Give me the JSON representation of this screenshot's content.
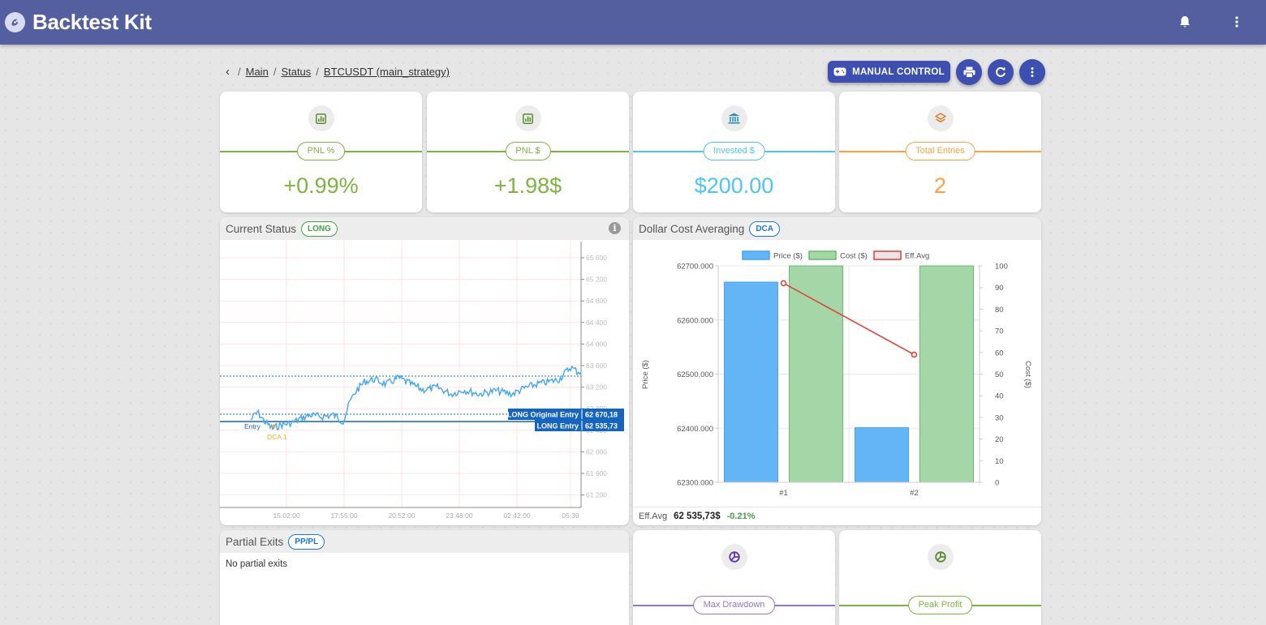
{
  "app": {
    "title": "Backtest Kit"
  },
  "breadcrumb": {
    "items": [
      "Main",
      "Status",
      "BTCUSDT (main_strategy)"
    ],
    "separator": "/"
  },
  "actions": {
    "manual_control_label": "MANUAL CONTROL"
  },
  "kpis": [
    {
      "label": "PNL %",
      "value": "+0.99%",
      "color": "#7cb342",
      "icon": "chart-box-icon"
    },
    {
      "label": "PNL $",
      "value": "+1.98$",
      "color": "#7cb342",
      "icon": "chart-box-icon"
    },
    {
      "label": "Invested $",
      "value": "$200.00",
      "color": "#4fc3f7",
      "icon": "bank-icon"
    },
    {
      "label": "Total Entries",
      "value": "2",
      "color": "#ffa040",
      "icon": "layers-icon"
    }
  ],
  "status_panel": {
    "title": "Current Status",
    "tag": "LONG",
    "tag_color": "#43a047",
    "price_ticks": [
      "65 600",
      "65 200",
      "64 800",
      "64 400",
      "64 000",
      "63 600",
      "63 200",
      "62 800",
      "62 400",
      "62 000",
      "61 600",
      "61 200"
    ],
    "time_ticks": [
      "15:02:00",
      "17:55:00",
      "20:52:00",
      "23:48:00",
      "02:42:00",
      "05:39"
    ],
    "labels": [
      {
        "text": "LONG Original Entry",
        "value": "62 670,18"
      },
      {
        "text": "LONG Entry",
        "value": "62 535,73"
      }
    ],
    "markers": {
      "entry": "Entry",
      "dca": "DCA 1"
    }
  },
  "dca_panel": {
    "title": "Dollar Cost Averaging",
    "tag": "DCA",
    "tag_color": "#1976d2",
    "footer": {
      "label": "Eff.Avg",
      "value": "62 535,73$",
      "change": "-0.21%"
    }
  },
  "partial_panel": {
    "title": "Partial Exits",
    "tag": "PP/PL",
    "tag_color": "#1976d2",
    "empty_text": "No partial exits"
  },
  "bottom_kpis": [
    {
      "label": "Max Drawdown",
      "color": "#9575cd",
      "icon": "chart-pie-icon"
    },
    {
      "label": "Peak Profit",
      "color": "#7cb342",
      "icon": "chart-pie-icon"
    }
  ],
  "chart_data": {
    "type": "bar",
    "categories": [
      "#1",
      "#2"
    ],
    "series": [
      {
        "name": "Price ($)",
        "axis": "left",
        "values": [
          62670,
          62401
        ],
        "color": "#64b5f6"
      },
      {
        "name": "Cost ($)",
        "axis": "right",
        "values": [
          100,
          100
        ],
        "color": "#a5d6a7"
      },
      {
        "name": "Eff.Avg",
        "axis": "right",
        "type": "line",
        "values": [
          92,
          59
        ],
        "color": "#e53935"
      }
    ],
    "ylabel": "Price ($)",
    "y2label": "Cost ($)",
    "ylim": [
      62300,
      62700
    ],
    "y2lim": [
      0,
      100
    ],
    "yticks": [
      "62700.000",
      "62600.000",
      "62500.000",
      "62400.000",
      "62300.000"
    ],
    "y2ticks": [
      "100",
      "90",
      "80",
      "70",
      "60",
      "50",
      "40",
      "30",
      "20",
      "10",
      "0"
    ],
    "legend": "top"
  }
}
